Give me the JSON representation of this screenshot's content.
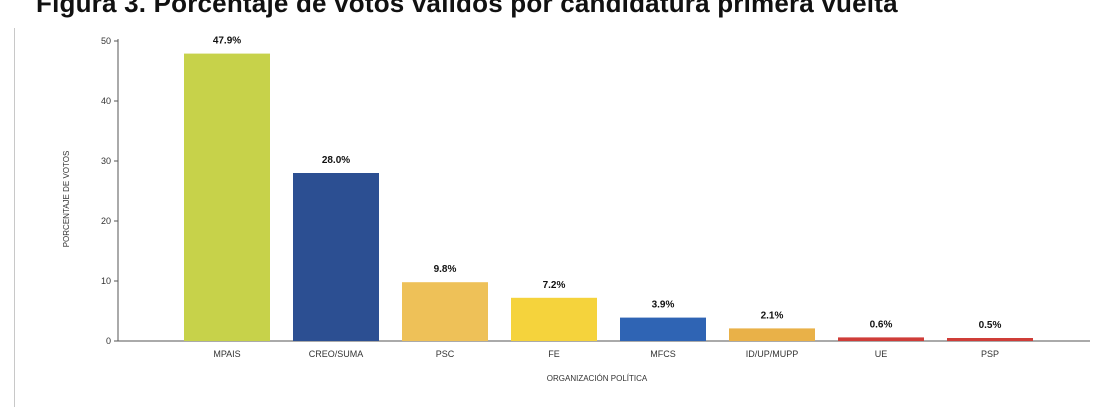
{
  "page": {
    "title": "Figura 3. Porcentaje de votos válidos por candidatura primera vuelta"
  },
  "chart_data": {
    "type": "bar",
    "title": "Figura 3. Porcentaje de votos válidos por candidatura primera vuelta",
    "xlabel": "ORGANIZACIÓN POLÍTICA",
    "ylabel": "PORCENTAJE DE VOTOS",
    "ylim": [
      0,
      50
    ],
    "yticks": [
      0,
      10,
      20,
      30,
      40,
      50
    ],
    "grid": false,
    "categories": [
      "MPAIS",
      "CREO/SUMA",
      "PSC",
      "FE",
      "MFCS",
      "ID/UP/MUPP",
      "UE",
      "PSP"
    ],
    "values": [
      47.9,
      28.0,
      9.8,
      7.2,
      3.9,
      2.1,
      0.6,
      0.5
    ],
    "value_labels": [
      "47.9%",
      "28.0%",
      "9.8%",
      "7.2%",
      "3.9%",
      "2.1%",
      "0.6%",
      "0.5%"
    ],
    "colors": [
      "#c7d24a",
      "#2c4f92",
      "#eec158",
      "#f5d33c",
      "#2f64b4",
      "#e9b148",
      "#cf3d38",
      "#cf3d38"
    ]
  }
}
